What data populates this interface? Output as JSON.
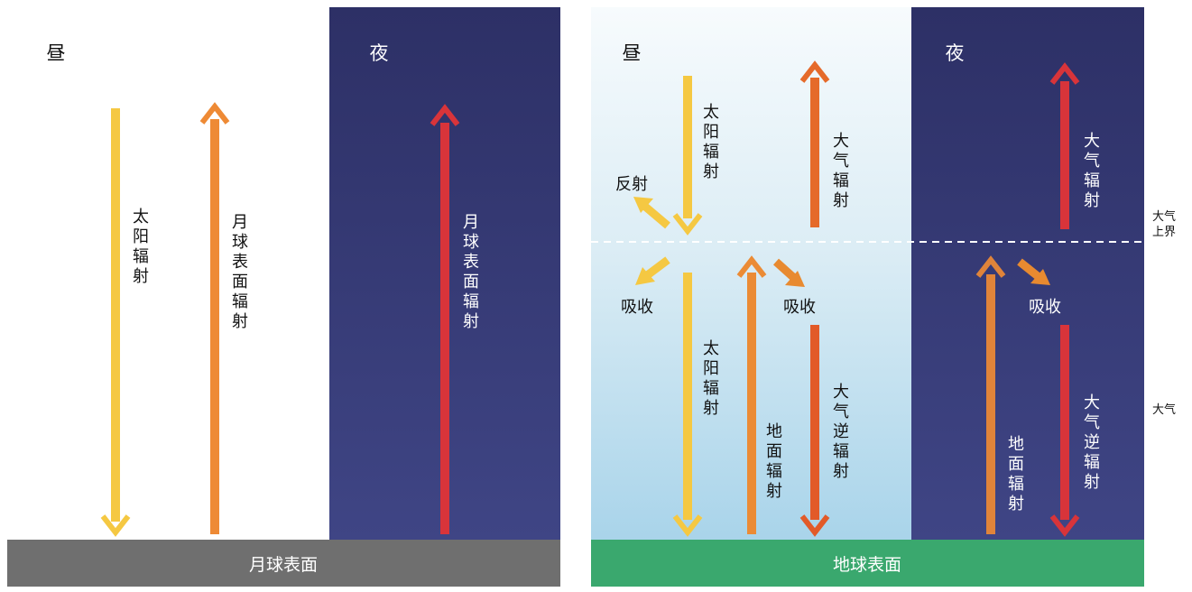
{
  "moon": {
    "day_label": "昼",
    "night_label": "夜",
    "surface_label": "月球表面",
    "solar_radiation_label": "太阳辐射",
    "surface_radiation_day_label": "月球表面辐射",
    "surface_radiation_night_label": "月球表面辐射"
  },
  "earth": {
    "day_label": "昼",
    "night_label": "夜",
    "surface_label": "地球表面",
    "solar_radiation_top_label": "太阳辐射",
    "solar_radiation_bottom_label": "太阳辐射",
    "reflection_label": "反射",
    "absorption_label": "吸收",
    "atmosphere_radiation_label": "大气辐射",
    "ground_radiation_label": "地面辐射",
    "counter_radiation_label": "大气逆辐射",
    "upper_boundary_label": "大气上界",
    "atmosphere_label": "大气"
  },
  "colors": {
    "solar": "#f5c842",
    "moon_surface_radiation": "#ee8a35",
    "night_red": "#d8343a",
    "atmosphere_radiation": "#e56a2a",
    "ground_radiation": "#eb8b35",
    "counter_radiation": "#e25a28",
    "night_sky": "#34386e",
    "moon_surface": "#6f6f6f",
    "earth_surface": "#3aa86e"
  }
}
